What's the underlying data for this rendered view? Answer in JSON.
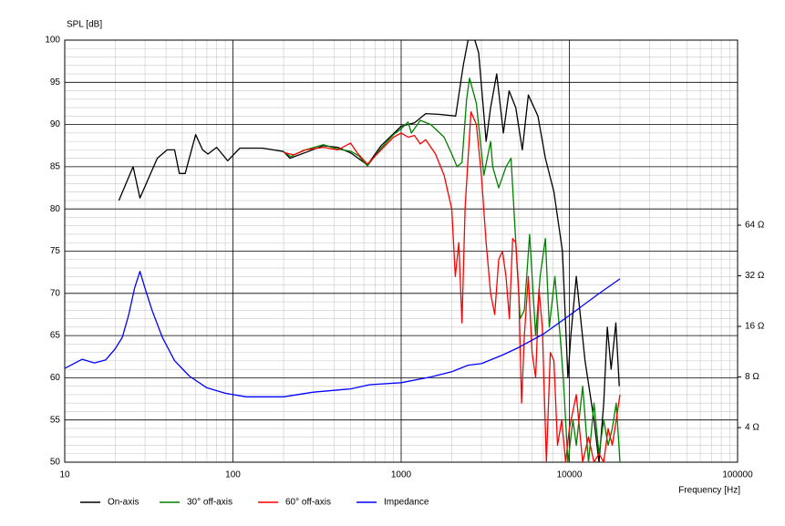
{
  "chart_data": {
    "type": "line",
    "title": "SPL [dB]",
    "x_label": "Frequency [Hz]",
    "xscale": "log",
    "xlim": [
      10,
      100000
    ],
    "xticks": [
      10,
      100,
      1000,
      10000,
      100000
    ],
    "ylim": [
      50,
      100
    ],
    "yticks": [
      50,
      55,
      60,
      65,
      70,
      75,
      80,
      85,
      90,
      95,
      100
    ],
    "y2scale": "log",
    "y2lim": [
      2.49,
      808
    ],
    "y2ticks": [
      {
        "value": 4,
        "label": "4 Ω"
      },
      {
        "value": 8,
        "label": "8 Ω"
      },
      {
        "value": 16,
        "label": "16 Ω"
      },
      {
        "value": 32,
        "label": "32 Ω"
      },
      {
        "value": 64,
        "label": "64 Ω"
      }
    ],
    "grid": true,
    "legend": "bottom",
    "series": [
      {
        "name": "On-axis",
        "color": "#000000",
        "x": [
          21,
          25.5,
          28,
          35.5,
          40.6,
          45,
          48,
          52,
          60,
          66,
          71,
          80,
          93,
          110,
          150,
          200,
          218,
          280,
          345,
          420,
          505,
          630,
          760,
          1000,
          1200,
          1400,
          1700,
          2110,
          2340,
          2500,
          2740,
          2890,
          3200,
          3400,
          3700,
          4050,
          4380,
          4800,
          5250,
          5700,
          6500,
          7200,
          8100,
          9100,
          9800,
          10200,
          11000,
          12400,
          14000,
          15000,
          16000,
          16800,
          17700,
          18900,
          19800
        ],
        "values": [
          81,
          85,
          81.3,
          86,
          87,
          87,
          84.2,
          84.2,
          88.8,
          87,
          86.5,
          87.3,
          85.7,
          87.2,
          87.2,
          86.8,
          86,
          86.8,
          87.5,
          87.3,
          86.6,
          85.2,
          87.5,
          89.8,
          90.2,
          91.3,
          91.2,
          91,
          97,
          100,
          100,
          98.5,
          88,
          92,
          96,
          89,
          94,
          92,
          87,
          93.5,
          91,
          86,
          82,
          75,
          60,
          65,
          72,
          62,
          55,
          50,
          57,
          66,
          61,
          66.5,
          59
        ]
      },
      {
        "name": "30° off-axis",
        "color": "#008000",
        "x": [
          200,
          220,
          260,
          345,
          420,
          505,
          560,
          630,
          760,
          900,
          1000,
          1100,
          1150,
          1300,
          1500,
          1800,
          2000,
          2150,
          2300,
          2450,
          2550,
          2800,
          3100,
          3400,
          3500,
          3800,
          4200,
          4500,
          5100,
          5400,
          5800,
          6300,
          6700,
          7200,
          7600,
          8200,
          8800,
          9200,
          9800,
          10500,
          11000,
          12000,
          13000,
          14000,
          15000,
          16000,
          17000,
          18000,
          19000,
          20000
        ],
        "values": [
          86.8,
          86.2,
          86.9,
          87.6,
          87.1,
          86.8,
          86.3,
          85.1,
          87.2,
          88.8,
          89.5,
          90.3,
          89,
          90.5,
          90,
          88.5,
          86.5,
          85,
          85.5,
          93,
          95.5,
          92.5,
          84,
          88,
          85,
          82.5,
          85,
          86,
          67,
          68,
          77,
          65,
          72,
          76.5,
          66,
          72,
          65,
          60,
          50,
          55,
          52,
          59,
          50,
          57,
          51,
          55,
          52,
          54,
          57,
          50
        ]
      },
      {
        "name": "60° off-axis",
        "color": "#ff0000",
        "x": [
          200,
          230,
          270,
          345,
          420,
          500,
          550,
          630,
          760,
          900,
          1000,
          1100,
          1200,
          1300,
          1400,
          1600,
          1800,
          2000,
          2100,
          2200,
          2300,
          2400,
          2500,
          2600,
          2800,
          3000,
          3200,
          3400,
          3600,
          3800,
          4000,
          4200,
          4400,
          4600,
          4800,
          5000,
          5200,
          5400,
          5700,
          6000,
          6300,
          6600,
          6900,
          7300,
          7700,
          8100,
          8500,
          9000,
          9500,
          10000,
          11000,
          12000,
          13000,
          14000,
          15000,
          16000,
          17000,
          18000,
          19000,
          20000
        ],
        "values": [
          86.7,
          86.4,
          87,
          87.3,
          87,
          87.8,
          86.6,
          85.3,
          87,
          88.5,
          89,
          88.5,
          88.7,
          87.7,
          88.2,
          86.5,
          84,
          80,
          72,
          76,
          66.5,
          80,
          86,
          91.5,
          90,
          84,
          76,
          70,
          67.5,
          74,
          75,
          72,
          67,
          76.5,
          76,
          70,
          57,
          65,
          72,
          63,
          60,
          70.5,
          66,
          50,
          63,
          62,
          52,
          55,
          50,
          54,
          58,
          50,
          53,
          50,
          51,
          50,
          54,
          52,
          55,
          58
        ]
      },
      {
        "name": "Impedance",
        "color": "#0000ff",
        "axis": "y2",
        "x": [
          10,
          12.7,
          15,
          17.5,
          20,
          22,
          24,
          26,
          28,
          30,
          33,
          38,
          45,
          55,
          70,
          90,
          120,
          160,
          200,
          300,
          500,
          650,
          1000,
          1500,
          2000,
          2500,
          3000,
          4000,
          5000,
          7000,
          10000,
          15000,
          20000
        ],
        "values": [
          9,
          10.2,
          9.7,
          10.1,
          11.8,
          13.8,
          18.7,
          27,
          34,
          27,
          20,
          13.8,
          10,
          8.1,
          6.9,
          6.4,
          6.1,
          6.1,
          6.1,
          6.5,
          6.8,
          7.2,
          7.4,
          8,
          8.6,
          9.4,
          9.6,
          10.8,
          12,
          14.4,
          18.6,
          25.1,
          30.7
        ]
      }
    ]
  }
}
